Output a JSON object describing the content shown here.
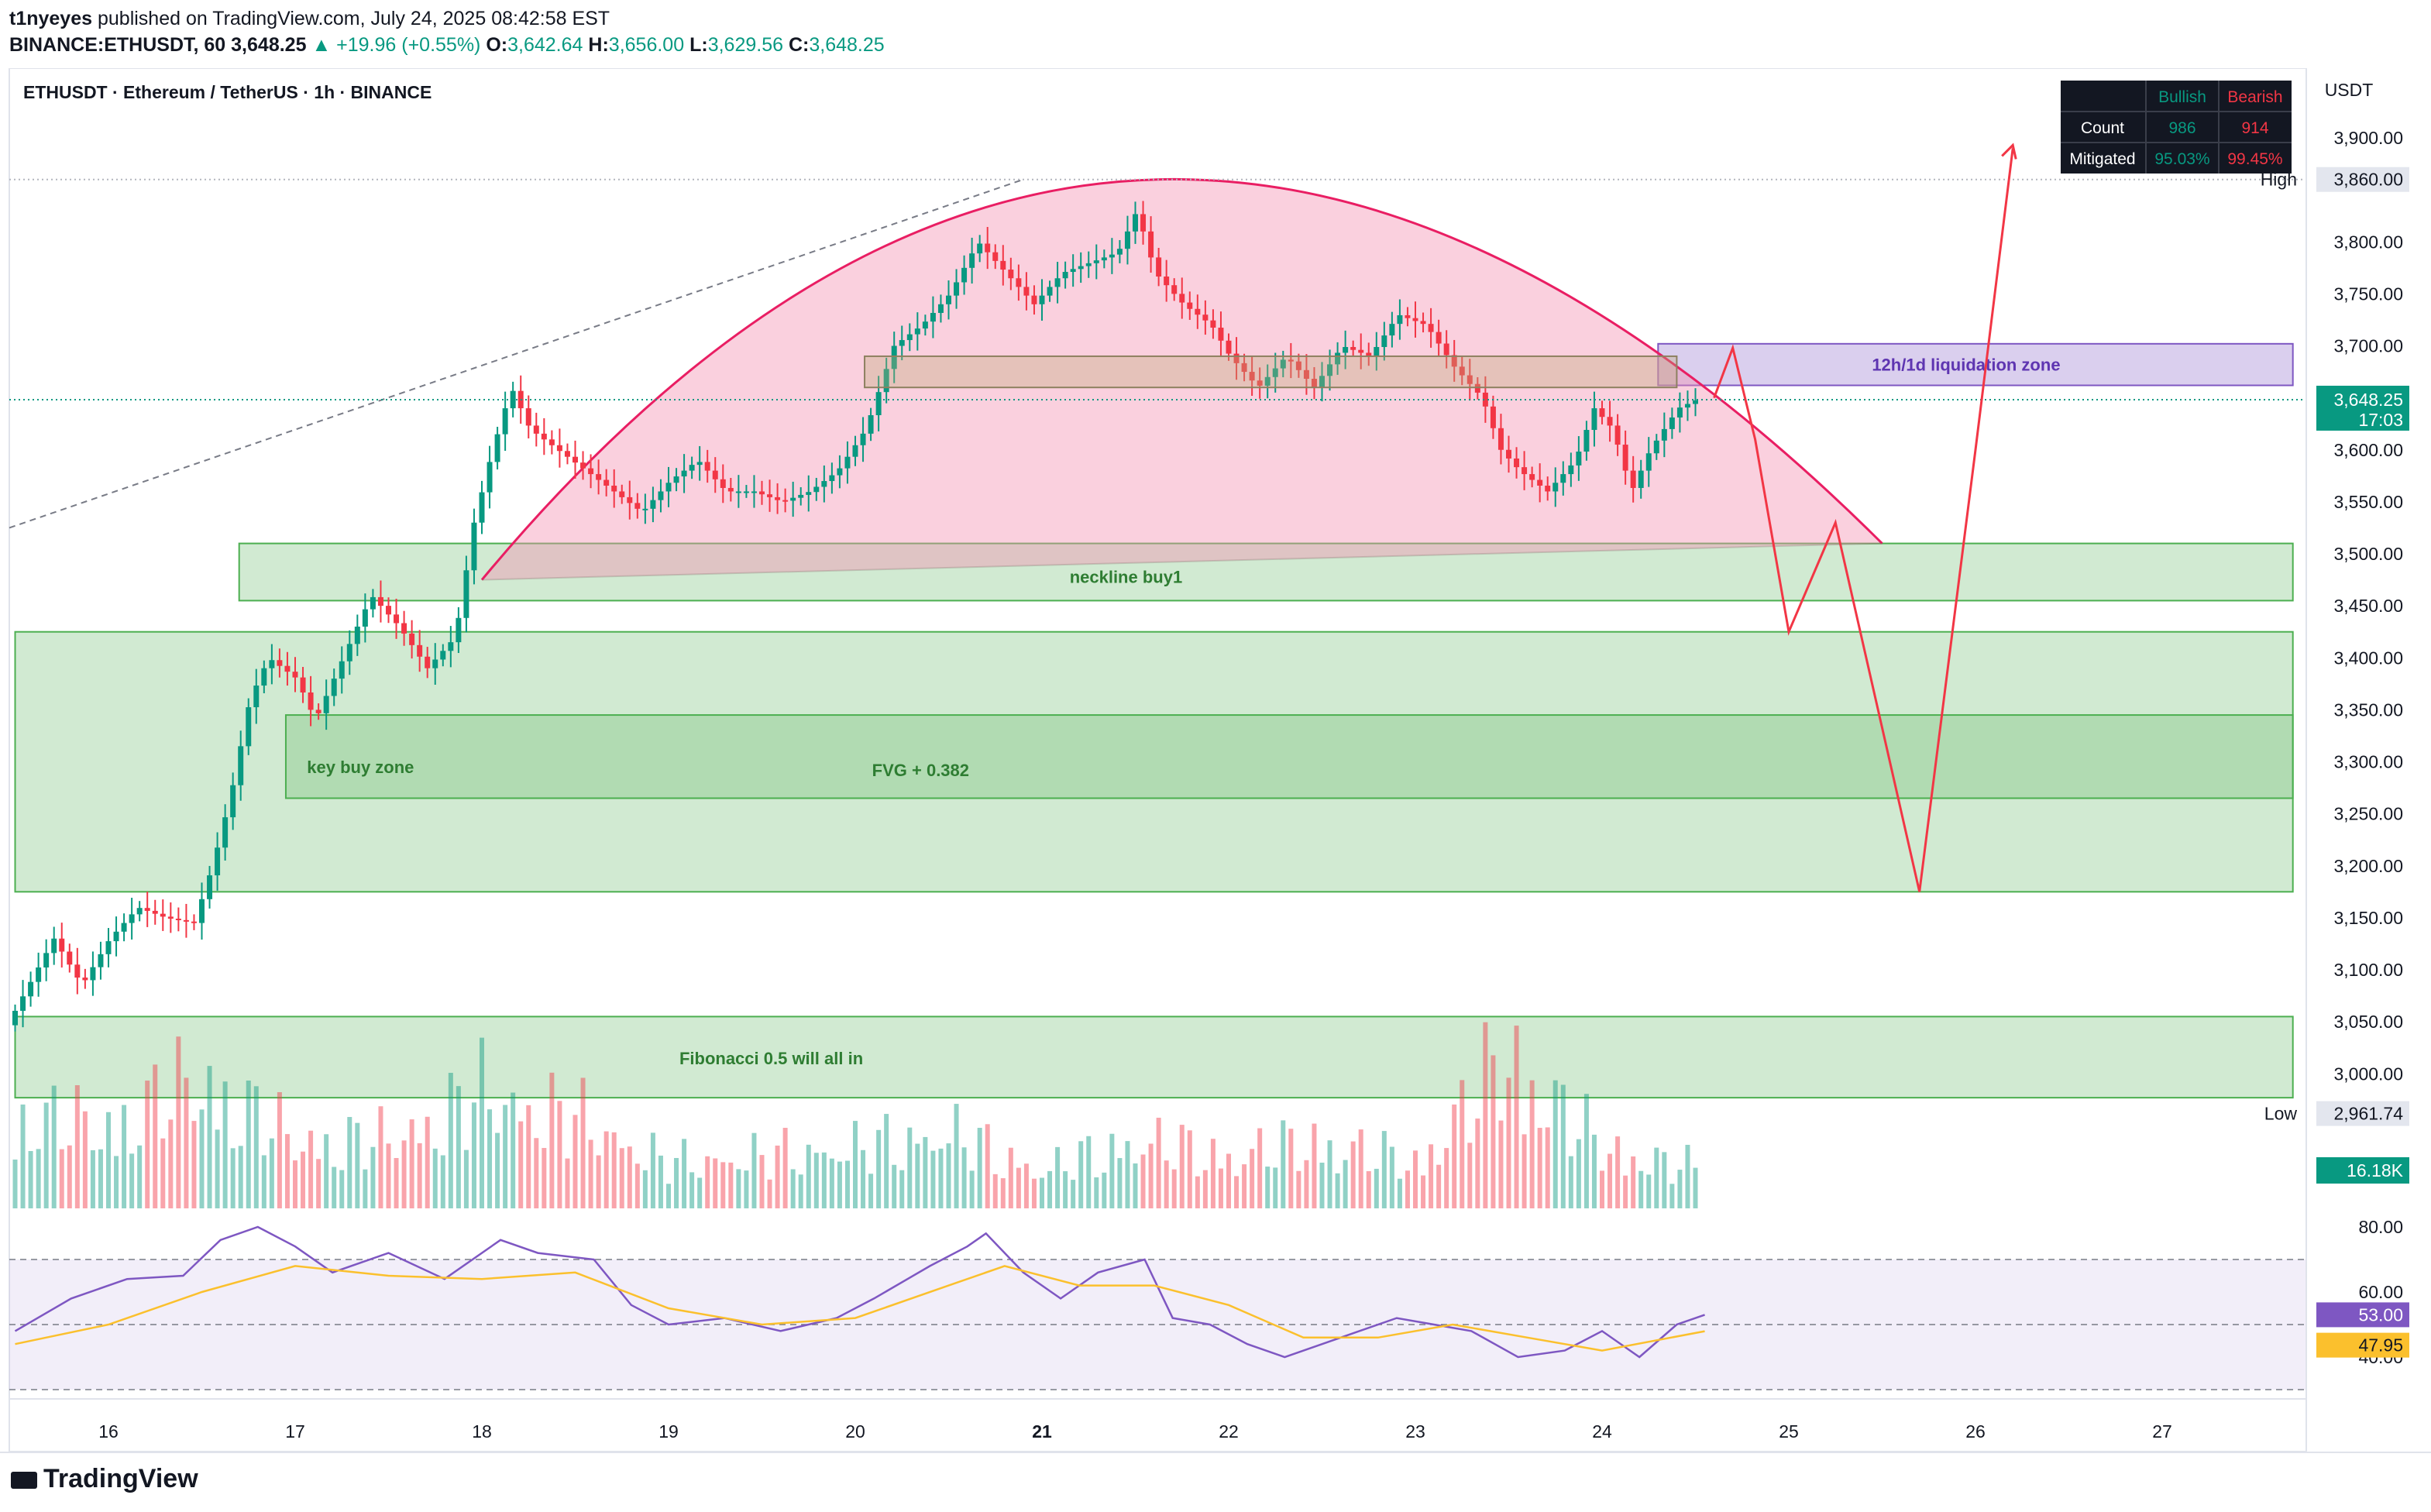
{
  "header": {
    "publisher": "t1nyeyes",
    "published_text": "published on TradingView.com, July 24, 2025 08:42:58 EST",
    "symbol_line": "BINANCE:ETHUSDT, 60",
    "price": "3,648.25",
    "change": "+19.96 (+0.55%)",
    "ohlc": {
      "o_label": "O:",
      "o": "3,642.64",
      "h_label": "H:",
      "h": "3,656.00",
      "l_label": "L:",
      "l": "3,629.56",
      "c_label": "C:",
      "c": "3,648.25"
    }
  },
  "chart_title": "ETHUSDT · Ethereum / TetherUS · 1h · BINANCE",
  "currency": "USDT",
  "colors": {
    "bull": "#089981",
    "bear": "#f23645",
    "zone_green": "#c8e6c9",
    "zone_green_border": "#4caf50",
    "dome": "#f8bbd0",
    "dome_line": "#e91e63",
    "proj_line": "#f23645",
    "liq_zone": "#9575cd",
    "rsi": "#7e57c2",
    "rsi_ma": "#fbc02d",
    "accent_price": "#089981"
  },
  "stats_table": {
    "headers": [
      "",
      "Bullish",
      "Bearish"
    ],
    "rows": [
      {
        "label": "Count",
        "bull": "986",
        "bear": "914"
      },
      {
        "label": "Mitigated",
        "bull": "95.03%",
        "bear": "99.45%"
      }
    ]
  },
  "price_axis": {
    "min": 2925,
    "max": 3940,
    "ticks": [
      {
        "v": 3900,
        "label": "3,900.00"
      },
      {
        "v": 3850,
        "label": ""
      },
      {
        "v": 3800,
        "label": "3,800.00"
      },
      {
        "v": 3750,
        "label": "3,750.00"
      },
      {
        "v": 3700,
        "label": "3,700.00"
      },
      {
        "v": 3600,
        "label": "3,600.00"
      },
      {
        "v": 3550,
        "label": "3,550.00"
      },
      {
        "v": 3500,
        "label": "3,500.00"
      },
      {
        "v": 3450,
        "label": "3,450.00"
      },
      {
        "v": 3400,
        "label": "3,400.00"
      },
      {
        "v": 3350,
        "label": "3,350.00"
      },
      {
        "v": 3300,
        "label": "3,300.00"
      },
      {
        "v": 3250,
        "label": "3,250.00"
      },
      {
        "v": 3200,
        "label": "3,200.00"
      },
      {
        "v": 3150,
        "label": "3,150.00"
      },
      {
        "v": 3100,
        "label": "3,100.00"
      },
      {
        "v": 3050,
        "label": "3,050.00"
      },
      {
        "v": 3000,
        "label": "3,000.00"
      }
    ],
    "high": {
      "label": "High",
      "value": 3860,
      "text": "3,860.00"
    },
    "low": {
      "label": "Low",
      "value": 2961.74,
      "text": "2,961.74"
    },
    "last": {
      "value": 3648.25,
      "text": "3,648.25",
      "countdown": "17:03"
    },
    "volume_tag": "16.18K"
  },
  "time_axis": {
    "labels": [
      {
        "t": 16,
        "label": "16"
      },
      {
        "t": 17,
        "label": "17"
      },
      {
        "t": 18,
        "label": "18"
      },
      {
        "t": 19,
        "label": "19"
      },
      {
        "t": 20,
        "label": "20"
      },
      {
        "t": 21,
        "label": "21"
      },
      {
        "t": 22,
        "label": "22"
      },
      {
        "t": 23,
        "label": "23"
      },
      {
        "t": 24,
        "label": "24"
      },
      {
        "t": 25,
        "label": "25"
      },
      {
        "t": 26,
        "label": "26"
      },
      {
        "t": 27,
        "label": "27"
      }
    ]
  },
  "rsi_axis": {
    "ticks": [
      {
        "v": 80,
        "label": "80.00"
      },
      {
        "v": 60,
        "label": "60.00"
      },
      {
        "v": 40,
        "label": "40.00"
      }
    ],
    "rsi_tag": "53.00",
    "ma_tag": "47.95",
    "upper": 70,
    "lower": 30,
    "mid": 50
  },
  "annotations": {
    "liquidation_zone": "12h/1d liquidation zone",
    "neckline": "neckline buy1",
    "key_buy_zone": "key buy zone",
    "fvg": "FVG + 0.382",
    "fib": "Fibonacci 0.5 will all in"
  },
  "chart_data": {
    "type": "candlestick",
    "symbol": "ETHUSDT",
    "interval": "1h",
    "x_unit": "day of month (July 2025)",
    "xlim": [
      15.5,
      27.7
    ],
    "ylim": [
      2925,
      3940
    ],
    "price_path": [
      [
        15.45,
        3030
      ],
      [
        15.6,
        3080
      ],
      [
        15.75,
        3130
      ],
      [
        15.9,
        3085
      ],
      [
        16.05,
        3130
      ],
      [
        16.2,
        3160
      ],
      [
        16.35,
        3150
      ],
      [
        16.5,
        3145
      ],
      [
        16.6,
        3200
      ],
      [
        16.7,
        3270
      ],
      [
        16.8,
        3360
      ],
      [
        16.9,
        3400
      ],
      [
        17.05,
        3380
      ],
      [
        17.15,
        3340
      ],
      [
        17.3,
        3400
      ],
      [
        17.45,
        3460
      ],
      [
        17.6,
        3430
      ],
      [
        17.75,
        3390
      ],
      [
        17.9,
        3420
      ],
      [
        18.0,
        3530
      ],
      [
        18.1,
        3600
      ],
      [
        18.2,
        3660
      ],
      [
        18.3,
        3620
      ],
      [
        18.45,
        3600
      ],
      [
        18.6,
        3580
      ],
      [
        18.75,
        3560
      ],
      [
        18.9,
        3540
      ],
      [
        19.05,
        3570
      ],
      [
        19.2,
        3590
      ],
      [
        19.35,
        3560
      ],
      [
        19.5,
        3560
      ],
      [
        19.65,
        3550
      ],
      [
        19.8,
        3560
      ],
      [
        19.95,
        3580
      ],
      [
        20.1,
        3620
      ],
      [
        20.25,
        3700
      ],
      [
        20.4,
        3720
      ],
      [
        20.55,
        3750
      ],
      [
        20.7,
        3800
      ],
      [
        20.85,
        3770
      ],
      [
        21.0,
        3740
      ],
      [
        21.15,
        3770
      ],
      [
        21.3,
        3780
      ],
      [
        21.45,
        3790
      ],
      [
        21.55,
        3830
      ],
      [
        21.65,
        3770
      ],
      [
        21.8,
        3740
      ],
      [
        21.95,
        3720
      ],
      [
        22.05,
        3690
      ],
      [
        22.2,
        3660
      ],
      [
        22.35,
        3690
      ],
      [
        22.5,
        3660
      ],
      [
        22.65,
        3700
      ],
      [
        22.8,
        3690
      ],
      [
        22.95,
        3730
      ],
      [
        23.1,
        3720
      ],
      [
        23.25,
        3680
      ],
      [
        23.4,
        3650
      ],
      [
        23.5,
        3600
      ],
      [
        23.6,
        3580
      ],
      [
        23.75,
        3560
      ],
      [
        23.9,
        3590
      ],
      [
        24.0,
        3640
      ],
      [
        24.1,
        3620
      ],
      [
        24.2,
        3560
      ],
      [
        24.3,
        3600
      ],
      [
        24.45,
        3640
      ],
      [
        24.55,
        3648.25
      ]
    ],
    "volume_path": [
      [
        15.5,
        0.6
      ],
      [
        16.0,
        0.55
      ],
      [
        16.5,
        0.85
      ],
      [
        17.0,
        0.45
      ],
      [
        17.5,
        0.45
      ],
      [
        18.0,
        0.75
      ],
      [
        18.5,
        0.6
      ],
      [
        19.0,
        0.3
      ],
      [
        19.5,
        0.35
      ],
      [
        20.0,
        0.4
      ],
      [
        20.5,
        0.5
      ],
      [
        21.0,
        0.25
      ],
      [
        21.5,
        0.45
      ],
      [
        22.0,
        0.35
      ],
      [
        22.5,
        0.45
      ],
      [
        23.0,
        0.3
      ],
      [
        23.5,
        1.0
      ],
      [
        24.0,
        0.4
      ],
      [
        24.55,
        0.25
      ]
    ],
    "rsi_path": [
      [
        15.5,
        48
      ],
      [
        15.8,
        58
      ],
      [
        16.1,
        64
      ],
      [
        16.4,
        65
      ],
      [
        16.6,
        76
      ],
      [
        16.8,
        80
      ],
      [
        17.0,
        74
      ],
      [
        17.2,
        66
      ],
      [
        17.5,
        72
      ],
      [
        17.8,
        64
      ],
      [
        18.1,
        76
      ],
      [
        18.3,
        72
      ],
      [
        18.6,
        70
      ],
      [
        18.8,
        56
      ],
      [
        19.0,
        50
      ],
      [
        19.3,
        52
      ],
      [
        19.6,
        48
      ],
      [
        19.9,
        52
      ],
      [
        20.1,
        58
      ],
      [
        20.4,
        68
      ],
      [
        20.6,
        74
      ],
      [
        20.7,
        78
      ],
      [
        20.9,
        66
      ],
      [
        21.1,
        58
      ],
      [
        21.3,
        66
      ],
      [
        21.55,
        70
      ],
      [
        21.7,
        52
      ],
      [
        21.9,
        50
      ],
      [
        22.1,
        44
      ],
      [
        22.3,
        40
      ],
      [
        22.6,
        46
      ],
      [
        22.9,
        52
      ],
      [
        23.1,
        50
      ],
      [
        23.3,
        48
      ],
      [
        23.55,
        40
      ],
      [
        23.8,
        42
      ],
      [
        24.0,
        48
      ],
      [
        24.2,
        40
      ],
      [
        24.4,
        50
      ],
      [
        24.55,
        53
      ]
    ],
    "rsi_ma_path": [
      [
        15.5,
        44
      ],
      [
        16.0,
        50
      ],
      [
        16.5,
        60
      ],
      [
        17.0,
        68
      ],
      [
        17.5,
        65
      ],
      [
        18.0,
        64
      ],
      [
        18.5,
        66
      ],
      [
        19.0,
        55
      ],
      [
        19.5,
        50
      ],
      [
        20.0,
        52
      ],
      [
        20.5,
        62
      ],
      [
        20.8,
        68
      ],
      [
        21.2,
        62
      ],
      [
        21.6,
        62
      ],
      [
        22.0,
        56
      ],
      [
        22.4,
        46
      ],
      [
        22.8,
        46
      ],
      [
        23.2,
        50
      ],
      [
        23.6,
        46
      ],
      [
        24.0,
        42
      ],
      [
        24.55,
        47.95
      ]
    ],
    "projection_path": [
      [
        24.6,
        3650
      ],
      [
        24.7,
        3698
      ],
      [
        24.82,
        3610
      ],
      [
        25.0,
        3425
      ],
      [
        25.25,
        3530
      ],
      [
        25.7,
        3175
      ],
      [
        26.0,
        3600
      ],
      [
        26.2,
        3890
      ]
    ],
    "zones": [
      {
        "label": "12h/1d liquidation zone",
        "x1": 24.3,
        "x2": 27.7,
        "y1": 3662,
        "y2": 3702
      },
      {
        "label": "neckline buy1",
        "x1": 16.7,
        "x2": 27.7,
        "y1": 3455,
        "y2": 3510
      },
      {
        "label": "FVG + 0.382",
        "x1": 15.5,
        "x2": 27.7,
        "y1": 3175,
        "y2": 3425
      },
      {
        "label": "",
        "x1": 16.95,
        "x2": 27.7,
        "y1": 3265,
        "y2": 3345
      },
      {
        "label": "Fibonacci 0.5 will all in",
        "x1": 15.5,
        "x2": 27.7,
        "y1": 2977,
        "y2": 3055
      }
    ],
    "dome": {
      "x1": 18.0,
      "x2": 25.5,
      "base_y1": 3475,
      "base_y2": 3510,
      "peak_x": 21.65,
      "peak_y": 3860
    },
    "orderblock_zone": {
      "x1": 20.05,
      "x2": 24.4,
      "y1": 3660,
      "y2": 3690
    }
  }
}
